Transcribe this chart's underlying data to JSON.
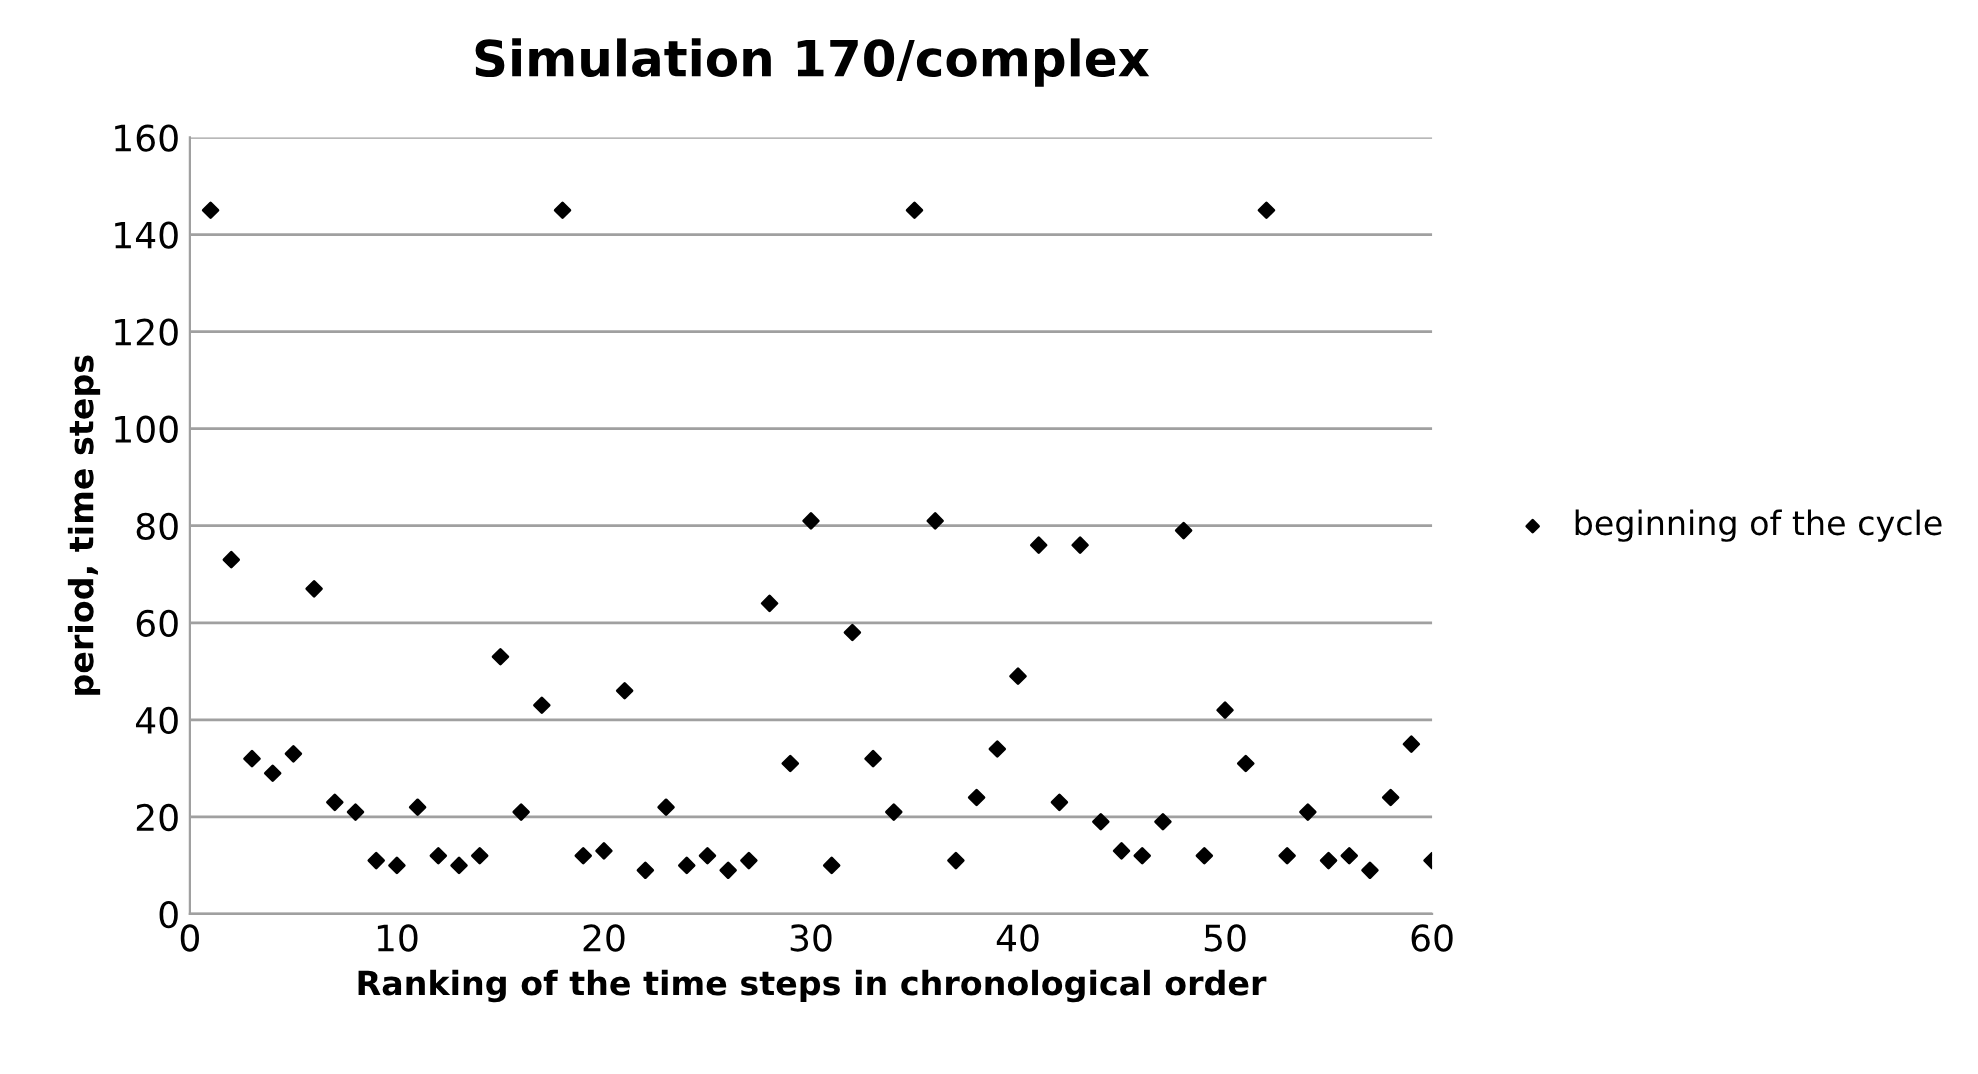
{
  "chart_data": {
    "type": "scatter",
    "title": "Simulation 170/complex",
    "xlabel": "Ranking of the time steps in chronological order",
    "ylabel": "period, time steps",
    "x": [
      1,
      2,
      3,
      4,
      5,
      6,
      7,
      8,
      9,
      10,
      11,
      12,
      13,
      14,
      15,
      16,
      17,
      18,
      19,
      20,
      21,
      22,
      23,
      24,
      25,
      26,
      27,
      28,
      29,
      30,
      31,
      32,
      33,
      34,
      35,
      36,
      37,
      38,
      39,
      40,
      41,
      42,
      43,
      44,
      45,
      46,
      47,
      48,
      49,
      50,
      51,
      52,
      53,
      54,
      55,
      56,
      57,
      58,
      59,
      60
    ],
    "series": [
      {
        "name": "beginning of the cycle",
        "color": "#000000",
        "values": [
          145,
          73,
          32,
          29,
          33,
          67,
          23,
          21,
          11,
          10,
          22,
          12,
          10,
          12,
          53,
          21,
          43,
          145,
          12,
          13,
          46,
          9,
          22,
          10,
          12,
          9,
          11,
          64,
          31,
          81,
          10,
          58,
          32,
          21,
          145,
          81,
          11,
          24,
          34,
          49,
          76,
          23,
          76,
          19,
          13,
          12,
          19,
          79,
          12,
          42,
          31,
          145,
          12,
          21,
          11,
          12,
          9,
          24,
          35,
          11
        ]
      }
    ],
    "xlim": [
      0,
      60
    ],
    "xticks": [
      0,
      10,
      20,
      30,
      40,
      50,
      60
    ],
    "ylim": [
      0,
      160
    ],
    "yticks": [
      0,
      20,
      40,
      60,
      80,
      100,
      120,
      140,
      160
    ],
    "grid": "y",
    "legend": "right",
    "marker": "diamond"
  }
}
